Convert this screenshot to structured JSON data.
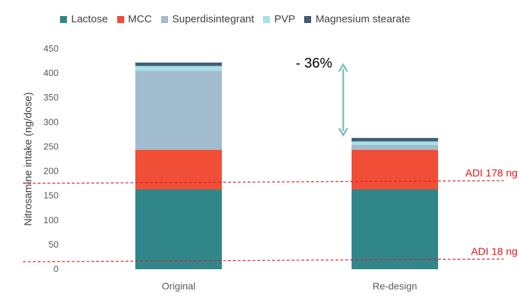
{
  "chart_data": {
    "type": "bar",
    "stacked": true,
    "categories": [
      "Original",
      "Re-design"
    ],
    "series": [
      {
        "name": "Lactose",
        "color": "#31868a",
        "values": [
          163,
          163
        ]
      },
      {
        "name": "MCC",
        "color": "#f04e37",
        "values": [
          81,
          81
        ]
      },
      {
        "name": "Superdisintegrant",
        "color": "#a1bccf",
        "values": [
          161,
          10
        ]
      },
      {
        "name": "PVP",
        "color": "#a6e0e4",
        "values": [
          10,
          7
        ]
      },
      {
        "name": "Magnesium stearate",
        "color": "#3f5d75",
        "values": [
          7,
          7
        ]
      }
    ],
    "ylabel": "Nitrosamine intake (ng/dose)",
    "ylim": [
      0,
      450
    ],
    "yticks": [
      "0",
      "50",
      "100",
      "150",
      "200",
      "250",
      "300",
      "350",
      "400",
      "450"
    ],
    "grid": false,
    "legend_position": "top",
    "reference_lines": [
      {
        "label": "ADI 178 ng",
        "value": 178,
        "color": "#e31a1c",
        "style": "dashed"
      },
      {
        "label": "ADI 18 ng",
        "value": 18,
        "color": "#e31a1c",
        "style": "dashed"
      }
    ],
    "annotation": {
      "text": "- 36%",
      "from_value": 422,
      "to_value": 268,
      "arrow_color": "#7fbfbb"
    }
  }
}
